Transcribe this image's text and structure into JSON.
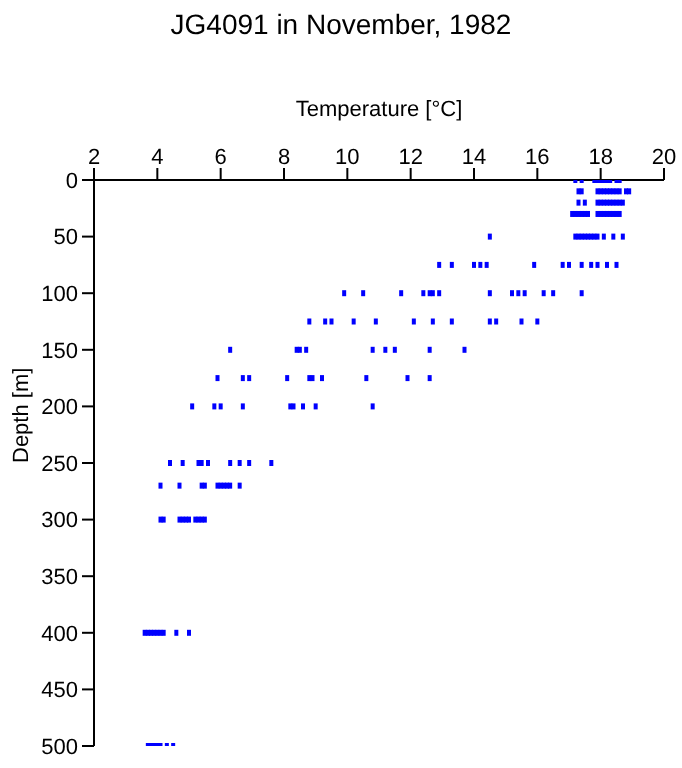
{
  "chart_data": {
    "type": "scatter",
    "title": "JG4091 in November, 1982",
    "xlabel": "Temperature [°C]",
    "ylabel": "Depth [m]",
    "xlim": [
      2,
      20
    ],
    "xticks": [
      2,
      4,
      6,
      8,
      10,
      12,
      14,
      16,
      18,
      20
    ],
    "ylim": [
      500,
      0
    ],
    "yticks": [
      0,
      50,
      100,
      150,
      200,
      250,
      300,
      350,
      400,
      450,
      500
    ],
    "grid": false,
    "legend": false,
    "marker": "square",
    "series": [
      {
        "color": "#0000ff",
        "x": [
          17.2,
          17.4,
          17.8,
          17.9,
          18.0,
          18.1,
          18.2,
          18.3,
          18.5,
          18.6,
          17.3,
          17.4,
          17.9,
          18.0,
          18.1,
          18.2,
          18.3,
          18.4,
          18.5,
          18.6,
          18.8,
          18.9,
          17.3,
          17.5,
          17.9,
          18.0,
          18.1,
          18.2,
          18.3,
          18.4,
          18.5,
          18.6,
          18.7,
          17.1,
          17.2,
          17.3,
          17.4,
          17.5,
          17.6,
          17.9,
          18.0,
          18.1,
          18.2,
          18.3,
          18.4,
          18.5,
          18.6,
          14.5,
          17.2,
          17.3,
          17.4,
          17.5,
          17.6,
          17.7,
          17.8,
          17.9,
          18.1,
          18.4,
          18.7,
          12.9,
          13.3,
          14.0,
          14.2,
          14.4,
          15.9,
          16.8,
          17.0,
          17.4,
          17.7,
          17.9,
          18.2,
          18.5,
          9.9,
          10.5,
          11.7,
          12.4,
          12.6,
          12.7,
          12.9,
          14.5,
          15.2,
          15.4,
          15.6,
          16.2,
          16.5,
          17.4,
          8.8,
          9.3,
          9.5,
          10.2,
          10.9,
          12.1,
          12.7,
          13.3,
          14.5,
          14.7,
          15.5,
          16.0,
          6.3,
          8.4,
          8.5,
          8.7,
          10.8,
          11.2,
          11.5,
          12.6,
          13.7,
          5.9,
          6.7,
          6.9,
          8.1,
          8.8,
          8.9,
          9.2,
          10.6,
          11.9,
          12.6,
          5.1,
          5.8,
          6.0,
          6.7,
          8.2,
          8.3,
          8.6,
          9.0,
          10.8,
          4.4,
          4.8,
          5.3,
          5.4,
          5.6,
          6.3,
          6.6,
          6.9,
          7.6,
          4.1,
          4.7,
          5.4,
          5.5,
          5.9,
          6.0,
          6.1,
          6.2,
          6.3,
          6.6,
          4.1,
          4.2,
          4.7,
          4.8,
          4.9,
          5.0,
          5.2,
          5.3,
          5.4,
          5.5,
          3.6,
          3.7,
          3.8,
          3.9,
          4.0,
          4.1,
          4.2,
          4.6,
          5.0,
          3.7,
          3.8,
          3.9,
          4.0,
          4.1,
          4.3,
          4.5
        ],
        "values": [
          0,
          0,
          0,
          0,
          0,
          0,
          0,
          0,
          0,
          0,
          10,
          10,
          10,
          10,
          10,
          10,
          10,
          10,
          10,
          10,
          10,
          10,
          20,
          20,
          20,
          20,
          20,
          20,
          20,
          20,
          20,
          20,
          20,
          30,
          30,
          30,
          30,
          30,
          30,
          30,
          30,
          30,
          30,
          30,
          30,
          30,
          30,
          50,
          50,
          50,
          50,
          50,
          50,
          50,
          50,
          50,
          50,
          50,
          50,
          75,
          75,
          75,
          75,
          75,
          75,
          75,
          75,
          75,
          75,
          75,
          75,
          75,
          100,
          100,
          100,
          100,
          100,
          100,
          100,
          100,
          100,
          100,
          100,
          100,
          100,
          100,
          125,
          125,
          125,
          125,
          125,
          125,
          125,
          125,
          125,
          125,
          125,
          125,
          150,
          150,
          150,
          150,
          150,
          150,
          150,
          150,
          150,
          175,
          175,
          175,
          175,
          175,
          175,
          175,
          175,
          175,
          175,
          200,
          200,
          200,
          200,
          200,
          200,
          200,
          200,
          200,
          250,
          250,
          250,
          250,
          250,
          250,
          250,
          250,
          250,
          270,
          270,
          270,
          270,
          270,
          270,
          270,
          270,
          270,
          270,
          300,
          300,
          300,
          300,
          300,
          300,
          300,
          300,
          300,
          300,
          400,
          400,
          400,
          400,
          400,
          400,
          400,
          400,
          400,
          500,
          500,
          500,
          500,
          500,
          500,
          500
        ]
      }
    ]
  }
}
